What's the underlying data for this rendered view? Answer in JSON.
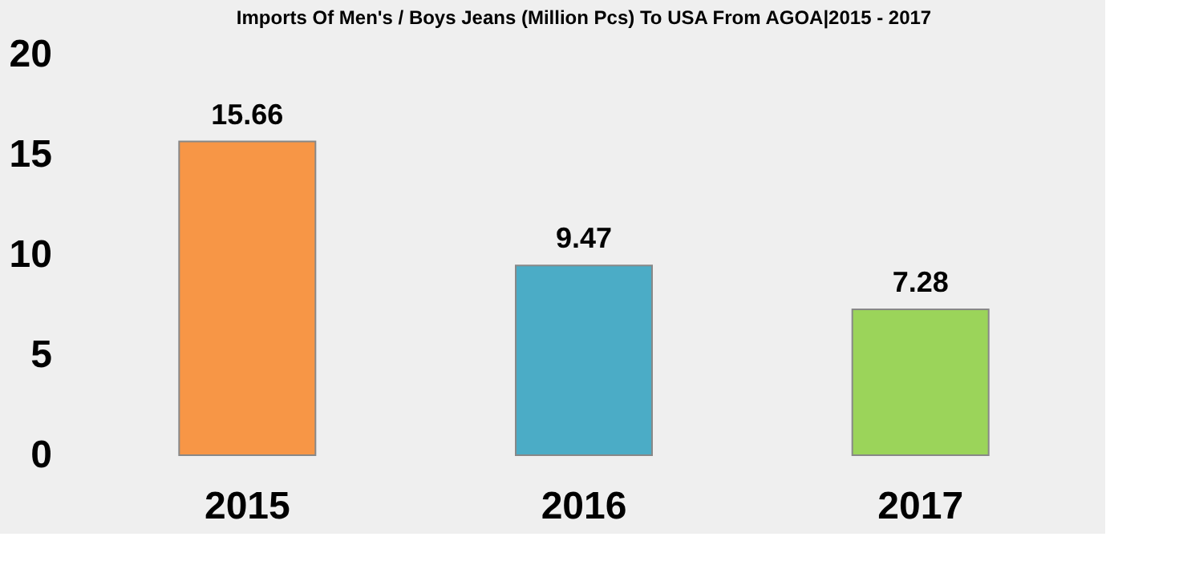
{
  "chart_data": {
    "type": "bar",
    "title": "Imports Of Men's / Boys Jeans (Million Pcs) To USA From AGOA|2015 - 2017",
    "categories": [
      "2015",
      "2016",
      "2017"
    ],
    "values": [
      15.66,
      9.47,
      7.28
    ],
    "colors": [
      "#f79646",
      "#4bacc6",
      "#9bd45a"
    ],
    "ylim": [
      0,
      20
    ],
    "yticks": [
      0,
      5,
      10,
      15,
      20
    ],
    "grid": false,
    "data_labels": true
  }
}
